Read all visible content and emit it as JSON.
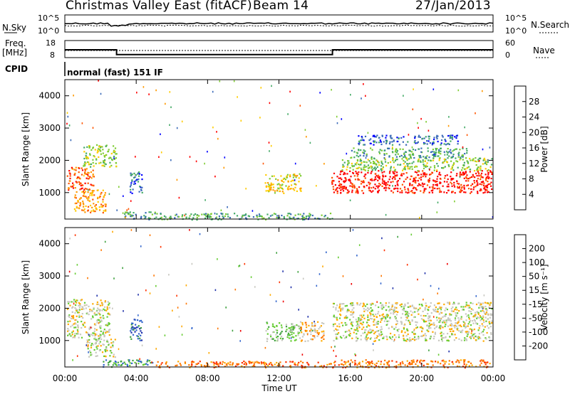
{
  "header": {
    "radar_title": "Christmas Valley East (fitACF)",
    "beam_label": "Beam 14",
    "date": "27/Jan/2013"
  },
  "nsky": {
    "label": "N.Sky",
    "ticks": [
      "10^5",
      "10^0"
    ],
    "search_label": "N.Search",
    "search_ticks": [
      "10^5",
      "10^0"
    ]
  },
  "freq": {
    "label_line1": "Freq.",
    "label_line2": "[MHz]",
    "ticks": [
      "18",
      "8"
    ],
    "nave_label": "Nave",
    "nave_ticks": [
      "60",
      "0"
    ]
  },
  "cpid": {
    "label": "CPID",
    "value": "normal (fast) 151 IF"
  },
  "power_panel": {
    "ylabel": "Slant Range [km]",
    "yticks": [
      "4000",
      "3000",
      "2000",
      "1000"
    ],
    "colorbar_label": "Power [dB]",
    "colorbar_ticks": [
      "28",
      "24",
      "20",
      "16",
      "12",
      "8",
      "4"
    ],
    "colors": [
      "#0000ff",
      "#3a6ab8",
      "#44aa66",
      "#7fcc33",
      "#ffcc00",
      "#ff9900",
      "#ff5500",
      "#ff0000"
    ]
  },
  "velocity_panel": {
    "ylabel": "Slant Range [km]",
    "yticks": [
      "4000",
      "3000",
      "2000",
      "1000"
    ],
    "colorbar_label": "Velocity [m s⁻¹]",
    "colorbar_ticks": [
      "200",
      "100",
      "50",
      "15",
      "-15",
      "-50",
      "-100",
      "-200"
    ],
    "colors": [
      "#2233aa",
      "#3366cc",
      "#3fa13f",
      "#66cc33",
      "#c8c8c0",
      "#ffaa00",
      "#ff7700",
      "#ff3300",
      "#ee0000"
    ]
  },
  "time_axis": {
    "ticks": [
      "00:00",
      "04:00",
      "08:00",
      "12:00",
      "16:00",
      "20:00",
      "00:00"
    ],
    "label": "Time UT"
  },
  "chart_data": {
    "type": "heatmap",
    "x_range_hours": [
      0,
      24
    ],
    "y_range_km": [
      180,
      4500
    ],
    "freq_mhz_segments": [
      {
        "from_h": 0,
        "to_h": 2.9,
        "freq": 14.5
      },
      {
        "from_h": 2.9,
        "to_h": 15.0,
        "freq": 10.5
      },
      {
        "from_h": 15.0,
        "to_h": 24,
        "freq": 14.5
      }
    ],
    "power_features": [
      {
        "h0": 0.1,
        "h1": 1.6,
        "km0": 1100,
        "km1": 1800,
        "level": 6
      },
      {
        "h0": 0.5,
        "h1": 2.3,
        "km0": 400,
        "km1": 1100,
        "level": 5
      },
      {
        "h0": 1.0,
        "h1": 2.9,
        "km0": 1800,
        "km1": 2500,
        "level": 3
      },
      {
        "h0": 3.3,
        "h1": 5.5,
        "km0": 180,
        "km1": 420,
        "level": 2
      },
      {
        "h0": 3.6,
        "h1": 4.3,
        "km0": 1000,
        "km1": 1700,
        "level": 1
      },
      {
        "h0": 5.5,
        "h1": 15.0,
        "km0": 180,
        "km1": 380,
        "level": 2
      },
      {
        "h0": 11.2,
        "h1": 13.2,
        "km0": 1000,
        "km1": 1600,
        "level": 4
      },
      {
        "h0": 14.9,
        "h1": 23.9,
        "km0": 1000,
        "km1": 1700,
        "level": 7
      },
      {
        "h0": 15.5,
        "h1": 23.9,
        "km0": 1700,
        "km1": 2100,
        "level": 3
      },
      {
        "h0": 16.0,
        "h1": 22.5,
        "km0": 2100,
        "km1": 2400,
        "level": 2
      },
      {
        "h0": 16.4,
        "h1": 22.0,
        "km0": 2500,
        "km1": 2800,
        "level": 1
      }
    ],
    "velocity_features": [
      {
        "h0": 0.1,
        "h1": 2.5,
        "km0": 1100,
        "km1": 2300,
        "level": 4
      },
      {
        "h0": 1.2,
        "h1": 2.8,
        "km0": 500,
        "km1": 1100,
        "level": 4
      },
      {
        "h0": 2.0,
        "h1": 5.0,
        "km0": 200,
        "km1": 420,
        "level": 2
      },
      {
        "h0": 3.6,
        "h1": 4.3,
        "km0": 1000,
        "km1": 1700,
        "level": 1
      },
      {
        "h0": 5.0,
        "h1": 15.0,
        "km0": 180,
        "km1": 380,
        "level": 6
      },
      {
        "h0": 11.2,
        "h1": 13.2,
        "km0": 1000,
        "km1": 1600,
        "level": 3
      },
      {
        "h0": 13.2,
        "h1": 14.5,
        "km0": 1000,
        "km1": 1600,
        "level": 5
      },
      {
        "h0": 15.0,
        "h1": 23.9,
        "km0": 1000,
        "km1": 2200,
        "level": 4
      },
      {
        "h0": 15.0,
        "h1": 23.9,
        "km0": 180,
        "km1": 420,
        "level": 6
      }
    ]
  }
}
